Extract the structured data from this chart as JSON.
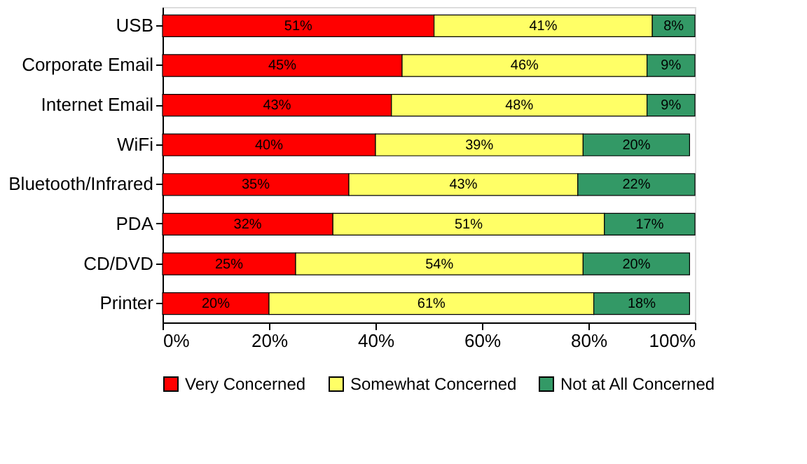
{
  "chart_data": {
    "type": "bar",
    "orientation": "horizontal",
    "stacked": true,
    "categories": [
      "USB",
      "Corporate Email",
      "Internet Email",
      "WiFi",
      "Bluetooth/Infrared",
      "PDA",
      "CD/DVD",
      "Printer"
    ],
    "series": [
      {
        "name": "Very Concerned",
        "color": "#ff0000",
        "values": [
          51,
          45,
          43,
          40,
          35,
          32,
          25,
          20
        ],
        "value_labels": [
          "51%",
          "45%",
          "43%",
          "40%",
          "35%",
          "32%",
          "25%",
          "20%"
        ]
      },
      {
        "name": "Somewhat Concerned",
        "color": "#ffff66",
        "values": [
          41,
          46,
          48,
          39,
          43,
          51,
          54,
          61
        ],
        "value_labels": [
          "41%",
          "46%",
          "48%",
          "39%",
          "43%",
          "51%",
          "54%",
          "61%"
        ]
      },
      {
        "name": "Not at All Concerned",
        "color": "#339966",
        "values": [
          8,
          9,
          9,
          20,
          22,
          17,
          20,
          18
        ],
        "value_labels": [
          "8%",
          "9%",
          "9%",
          "20%",
          "22%",
          "17%",
          "20%",
          "18%"
        ]
      }
    ],
    "xlim": [
      0,
      100
    ],
    "xticks": [
      {
        "value": 0,
        "label": "0%"
      },
      {
        "value": 20,
        "label": "20%"
      },
      {
        "value": 40,
        "label": "40%"
      },
      {
        "value": 60,
        "label": "60%"
      },
      {
        "value": 80,
        "label": "80%"
      },
      {
        "value": 100,
        "label": "100%"
      }
    ],
    "grid": false,
    "legend": "bottom"
  }
}
